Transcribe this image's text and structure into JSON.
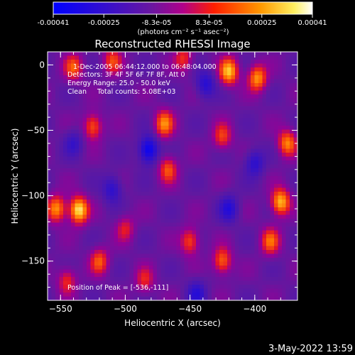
{
  "colorbar": {
    "ticks": [
      "-0.00041",
      "-0.00025",
      "-8.3e-05",
      "8.3e-05",
      "0.00025",
      "0.00041"
    ],
    "tick_values": [
      -0.00041,
      -0.00025,
      -8.3e-05,
      8.3e-05,
      0.00025,
      0.00041
    ],
    "range": [
      -0.00041,
      0.00041
    ],
    "units": "(photons cm⁻² s⁻¹ asec⁻²)"
  },
  "chart_data": {
    "type": "heatmap",
    "title": "Reconstructed RHESSI Image",
    "xlabel": "Heliocentric X (arcsec)",
    "ylabel": "Heliocentric Y (arcsec)",
    "xlim": [
      -560,
      -367
    ],
    "ylim": [
      -180,
      10
    ],
    "x_ticks": [
      -550,
      -500,
      -450,
      -400
    ],
    "y_ticks": [
      0,
      -50,
      -100,
      -150
    ],
    "colormap": [
      "#0000ff",
      "#5a1ea8",
      "#9b00b3",
      "#ff2200",
      "#ff9a00",
      "#ffffb0"
    ],
    "annotations": [
      "1-Dec-2005 06:44:12.000 to 06:48:04.000",
      "Detectors: 3F 4F 5F 6F 7F 8F, Att 0",
      "Energy Range: 25.0 - 50.0 keV",
      "Clean     Total counts: 5.08E+03"
    ],
    "peak_label": "Position of Peak = [-536,-111]",
    "peak": [
      -536,
      -111
    ],
    "sources": [
      {
        "x": -536,
        "y": -111,
        "value": 0.00041
      },
      {
        "x": -553,
        "y": -110,
        "value": 0.0003
      },
      {
        "x": -470,
        "y": -45,
        "value": 0.00028
      },
      {
        "x": -525,
        "y": -47,
        "value": 0.00024
      },
      {
        "x": -467,
        "y": -80,
        "value": 0.00022
      },
      {
        "x": -450,
        "y": -135,
        "value": 0.00022
      },
      {
        "x": -420,
        "y": -5,
        "value": 0.00035
      },
      {
        "x": -398,
        "y": -10,
        "value": 0.0003
      },
      {
        "x": -380,
        "y": -105,
        "value": 0.00035
      },
      {
        "x": -375,
        "y": -60,
        "value": 0.00028
      },
      {
        "x": -388,
        "y": -135,
        "value": 0.00024
      },
      {
        "x": -425,
        "y": -150,
        "value": 0.00025
      },
      {
        "x": -540,
        "y": -2,
        "value": 0.00022
      },
      {
        "x": -510,
        "y": 3,
        "value": 0.0002
      },
      {
        "x": -455,
        "y": 5,
        "value": 0.00018
      },
      {
        "x": -520,
        "y": -150,
        "value": 0.00022
      },
      {
        "x": -545,
        "y": -165,
        "value": 0.00018
      },
      {
        "x": -485,
        "y": -165,
        "value": 0.00016
      },
      {
        "x": -425,
        "y": -55,
        "value": 0.0002
      },
      {
        "x": -500,
        "y": -125,
        "value": 0.00015
      }
    ],
    "negative_regions": [
      {
        "x": -482,
        "y": -65,
        "value": -0.00035
      },
      {
        "x": -438,
        "y": -15,
        "value": -0.00022
      },
      {
        "x": -510,
        "y": -95,
        "value": -0.0002
      },
      {
        "x": -420,
        "y": -110,
        "value": -0.00022
      },
      {
        "x": -400,
        "y": -75,
        "value": -0.0002
      },
      {
        "x": -445,
        "y": -175,
        "value": -0.0002
      },
      {
        "x": -540,
        "y": -60,
        "value": -0.00015
      }
    ]
  },
  "footer": {
    "timestamp": "3-May-2022 13:59"
  }
}
